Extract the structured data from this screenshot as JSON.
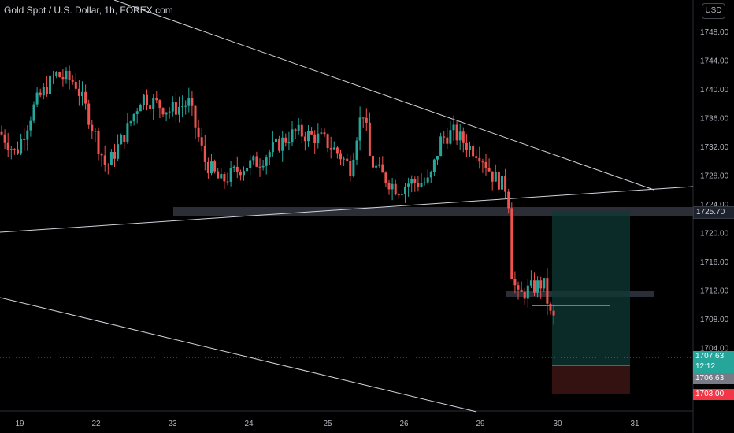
{
  "title": "Gold Spot / U.S. Dollar, 1h, FOREX.com",
  "currency_button": "USD",
  "colors": {
    "background": "#000000",
    "up": "#26a69a",
    "down": "#ef5350",
    "trendline": "#d1d4dc",
    "zone": "#363a45",
    "profit": "#0d3a35",
    "loss": "#3a1414"
  },
  "chart_data": {
    "type": "candlestick",
    "symbol": "Gold Spot / U.S. Dollar",
    "interval": "1h",
    "source": "FOREX.com",
    "y_ticks": [
      1748.0,
      1744.0,
      1740.0,
      1736.0,
      1732.0,
      1728.0,
      1724.0,
      1720.0,
      1716.0,
      1712.0,
      1708.0,
      1704.0
    ],
    "x_ticks": [
      "19",
      "22",
      "23",
      "24",
      "25",
      "26",
      "29",
      "30",
      "31"
    ],
    "price_tags": {
      "current": "1707.63",
      "countdown": "12:12",
      "entry": "1706.63",
      "stop": "1725.70",
      "target": "1703.00"
    },
    "series": [
      {
        "x": "19",
        "close": 1732.5
      },
      {
        "x": "22",
        "close": 1736.0
      },
      {
        "x": "23",
        "close": 1727.5
      },
      {
        "x": "24",
        "close": 1730.0
      },
      {
        "x": "25",
        "close": 1733.5
      },
      {
        "x": "26",
        "close": 1730.0
      },
      {
        "x": "29",
        "close": 1711.5
      },
      {
        "x": "30",
        "close": 1707.6
      }
    ]
  }
}
